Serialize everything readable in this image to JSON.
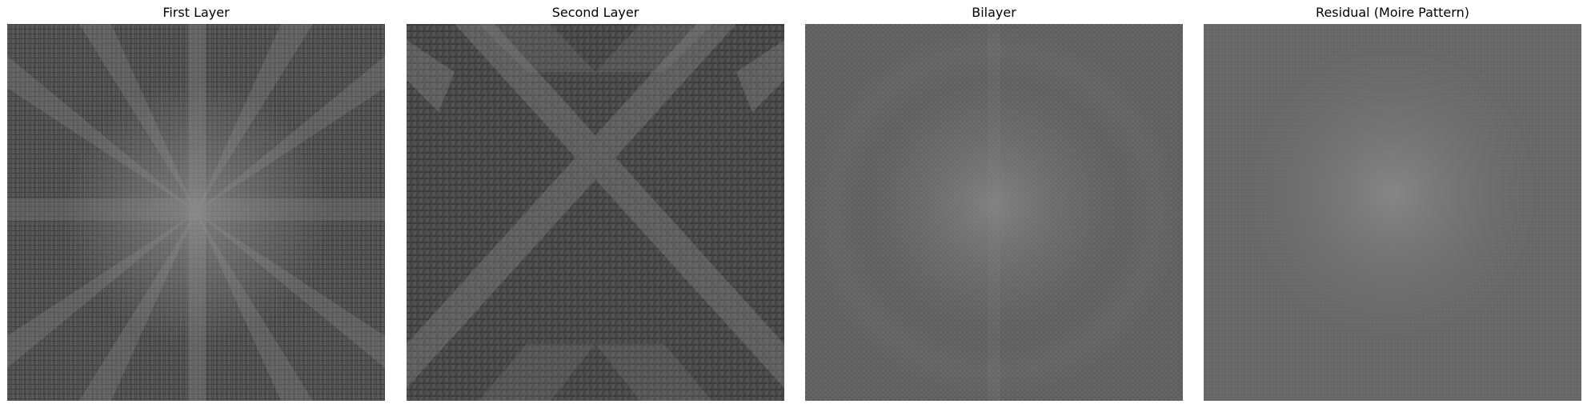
{
  "figure": {
    "panels": [
      {
        "title": "First Layer"
      },
      {
        "title": "Second Layer"
      },
      {
        "title": "Bilayer"
      },
      {
        "title": "Residual (Moire Pattern)"
      }
    ]
  }
}
